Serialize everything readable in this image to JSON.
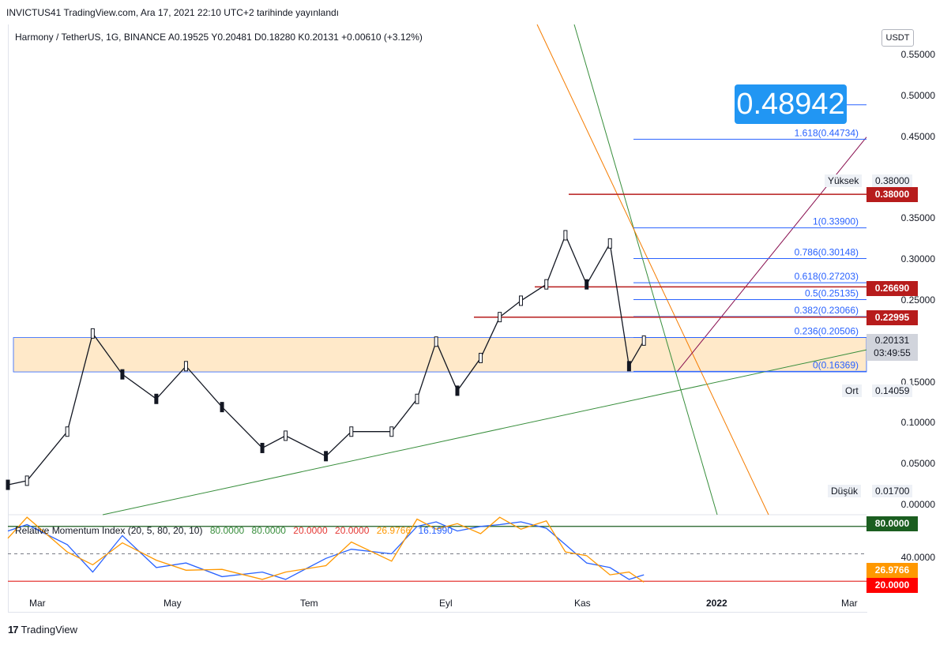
{
  "header": {
    "published": "INVICTUS41 TradingView.com, Ara 17, 2021 22:10 UTC+2 tarihinde yayınlandı"
  },
  "legend": {
    "text": "Harmony / TetherUS, 1G, BINANCE  A0.19525  Y0.20481  D0.18280  K0.20131  +0.00610 (+3.12%)"
  },
  "currency": "USDT",
  "price_ticks": [
    "0.55000",
    "0.50000",
    "0.45000",
    "0.35000",
    "0.30000",
    "0.25000",
    "0.15000",
    "0.10000",
    "0.05000",
    "0.00000"
  ],
  "labels": {
    "big_price": "0.48942",
    "yuksek_label": "Yüksek",
    "yuksek_value": "0.38000",
    "high_line": "0.38000",
    "res_2669": "0.26690",
    "res_2299": "0.22995",
    "current_price": "0.20131",
    "countdown": "03:49:55",
    "ort_label": "Ort",
    "ort_value": "0.14059",
    "dusuk_label": "Düşük",
    "dusuk_value": "0.01700",
    "rmi_80": "80.0000",
    "rmi_val": "26.9766",
    "rmi_20": "20.0000",
    "rmi_40": "40.0000"
  },
  "fib_levels": [
    {
      "label": "1.618(0.44734)",
      "price": 0.44734
    },
    {
      "label": "1(0.33900)",
      "price": 0.339
    },
    {
      "label": "0.786(0.30148)",
      "price": 0.30148
    },
    {
      "label": "0.618(0.27203)",
      "price": 0.27203
    },
    {
      "label": "0.5(0.25135)",
      "price": 0.25135
    },
    {
      "label": "0.382(0.23066)",
      "price": 0.23066
    },
    {
      "label": "0.236(0.20506)",
      "price": 0.20506
    },
    {
      "label": "0(0.16369)",
      "price": 0.16369
    }
  ],
  "rmi_legend": {
    "name": "Relative Momentum Index (20, 5, 80, 20, 10)",
    "v1": "80.0000",
    "v2": "80.0000",
    "v3": "20.0000",
    "v4": "20.0000",
    "v5": "26.9766",
    "v6": "16.1990"
  },
  "time_labels": [
    "Mar",
    "May",
    "Tem",
    "Eyl",
    "Kas",
    "2022",
    "Mar"
  ],
  "footer": "TradingView",
  "colors": {
    "up": "#26a69a",
    "down": "#ef5350",
    "candle": "#131722",
    "fib": "#2962ff",
    "resistance": "#b71c1c",
    "zone": "#ffe0b2",
    "green_line": "#388e3c",
    "orange_line": "#f57c00",
    "rmi_line": "#2962ff",
    "rmi_fast": "#ff9800"
  },
  "chart_data": {
    "type": "candlestick",
    "title": "Harmony / TetherUS, 1G, BINANCE",
    "x": [
      "2021-02-20",
      "2021-03-01",
      "2021-03-20",
      "2021-04-01",
      "2021-04-15",
      "2021-05-01",
      "2021-05-15",
      "2021-06-01",
      "2021-06-20",
      "2021-07-01",
      "2021-07-20",
      "2021-08-01",
      "2021-08-20",
      "2021-09-01",
      "2021-09-10",
      "2021-09-20",
      "2021-10-01",
      "2021-10-10",
      "2021-10-20",
      "2021-11-01",
      "2021-11-10",
      "2021-11-20",
      "2021-12-01",
      "2021-12-10",
      "2021-12-17"
    ],
    "close": [
      0.025,
      0.03,
      0.09,
      0.21,
      0.16,
      0.13,
      0.17,
      0.12,
      0.07,
      0.085,
      0.06,
      0.09,
      0.09,
      0.13,
      0.2,
      0.14,
      0.18,
      0.23,
      0.25,
      0.27,
      0.33,
      0.27,
      0.32,
      0.17,
      0.20131
    ],
    "ylim": [
      0,
      0.57
    ],
    "horizontal_levels": [
      0.38,
      0.2669,
      0.22995
    ],
    "zone": [
      0.163,
      0.205
    ],
    "target": 0.48942,
    "rmi": {
      "overbought": 80,
      "oversold": 20,
      "mid": 50,
      "values": [
        75,
        82,
        60,
        30,
        70,
        35,
        40,
        25,
        30,
        22,
        45,
        55,
        50,
        80,
        85,
        75,
        80,
        82,
        85,
        78,
        60,
        40,
        35,
        22,
        26.9766
      ]
    }
  }
}
